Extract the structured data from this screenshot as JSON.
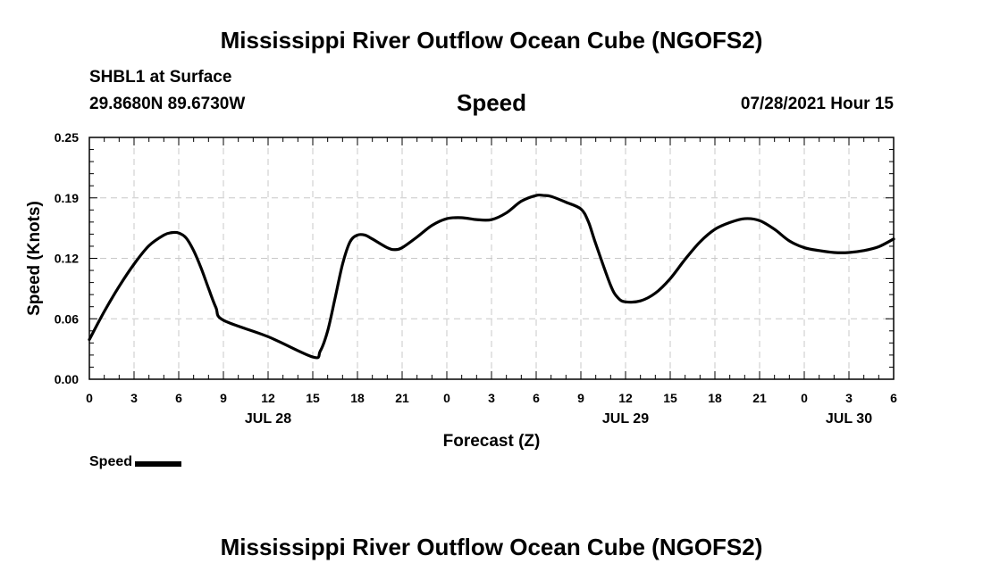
{
  "titles": {
    "top": "Mississippi River Outflow Ocean Cube (NGOFS2)",
    "bottom": "Mississippi River Outflow Ocean Cube (NGOFS2)"
  },
  "header": {
    "station": "SHBL1 at Surface",
    "coords": "29.8680N  89.6730W",
    "variable": "Speed",
    "run_time": "07/28/2021 Hour 15"
  },
  "legend": {
    "label": "Speed"
  },
  "colors": {
    "line": "#000000",
    "grid": "#c8c8c8"
  },
  "chart_data": {
    "type": "line",
    "title": "Speed",
    "xlabel": "Forecast (Z)",
    "ylabel": "Speed (Knots)",
    "xlim": [
      0,
      54
    ],
    "ylim": [
      0,
      0.25
    ],
    "x_ticks": [
      0,
      3,
      6,
      9,
      12,
      15,
      18,
      21,
      24,
      27,
      30,
      33,
      36,
      39,
      42,
      45,
      48,
      51,
      54
    ],
    "x_tick_labels": [
      "0",
      "3",
      "6",
      "9",
      "12",
      "15",
      "18",
      "21",
      "0",
      "3",
      "6",
      "9",
      "12",
      "15",
      "18",
      "21",
      "0",
      "3",
      "6"
    ],
    "y_ticks": [
      0,
      0.0625,
      0.125,
      0.1875,
      0.25
    ],
    "y_tick_labels": [
      "0.00",
      "0.06",
      "0.12",
      "0.19",
      "0.25"
    ],
    "date_labels": [
      {
        "x": 12,
        "label": "JUL 28"
      },
      {
        "x": 36,
        "label": "JUL 29"
      },
      {
        "x": 51,
        "label": "JUL 30"
      }
    ],
    "grid": true,
    "series": [
      {
        "name": "Speed",
        "x": [
          0,
          1,
          2,
          3,
          4,
          5,
          5.5,
          6,
          6.5,
          7,
          7.5,
          8,
          8.5,
          9,
          12,
          15,
          15.5,
          16,
          16.5,
          17,
          17.5,
          18,
          18.5,
          19,
          20,
          20.5,
          21,
          22,
          23,
          24,
          25,
          26,
          27,
          28,
          29,
          30,
          30.5,
          31,
          32,
          33,
          33.5,
          34,
          35,
          35.5,
          36,
          37,
          38,
          39,
          40,
          41,
          42,
          43,
          44,
          45,
          46,
          47,
          48,
          49,
          50,
          51,
          52,
          53,
          54
        ],
        "values": [
          0.041,
          0.07,
          0.096,
          0.119,
          0.138,
          0.149,
          0.1515,
          0.1512,
          0.146,
          0.133,
          0.115,
          0.094,
          0.074,
          0.061,
          0.044,
          0.023,
          0.029,
          0.05,
          0.084,
          0.119,
          0.142,
          0.149,
          0.149,
          0.145,
          0.136,
          0.134,
          0.136,
          0.147,
          0.159,
          0.166,
          0.167,
          0.165,
          0.165,
          0.172,
          0.184,
          0.19,
          0.19,
          0.189,
          0.183,
          0.176,
          0.163,
          0.14,
          0.097,
          0.084,
          0.08,
          0.081,
          0.089,
          0.104,
          0.124,
          0.142,
          0.155,
          0.162,
          0.166,
          0.164,
          0.155,
          0.143,
          0.136,
          0.133,
          0.131,
          0.131,
          0.133,
          0.137,
          0.145
        ]
      }
    ]
  }
}
